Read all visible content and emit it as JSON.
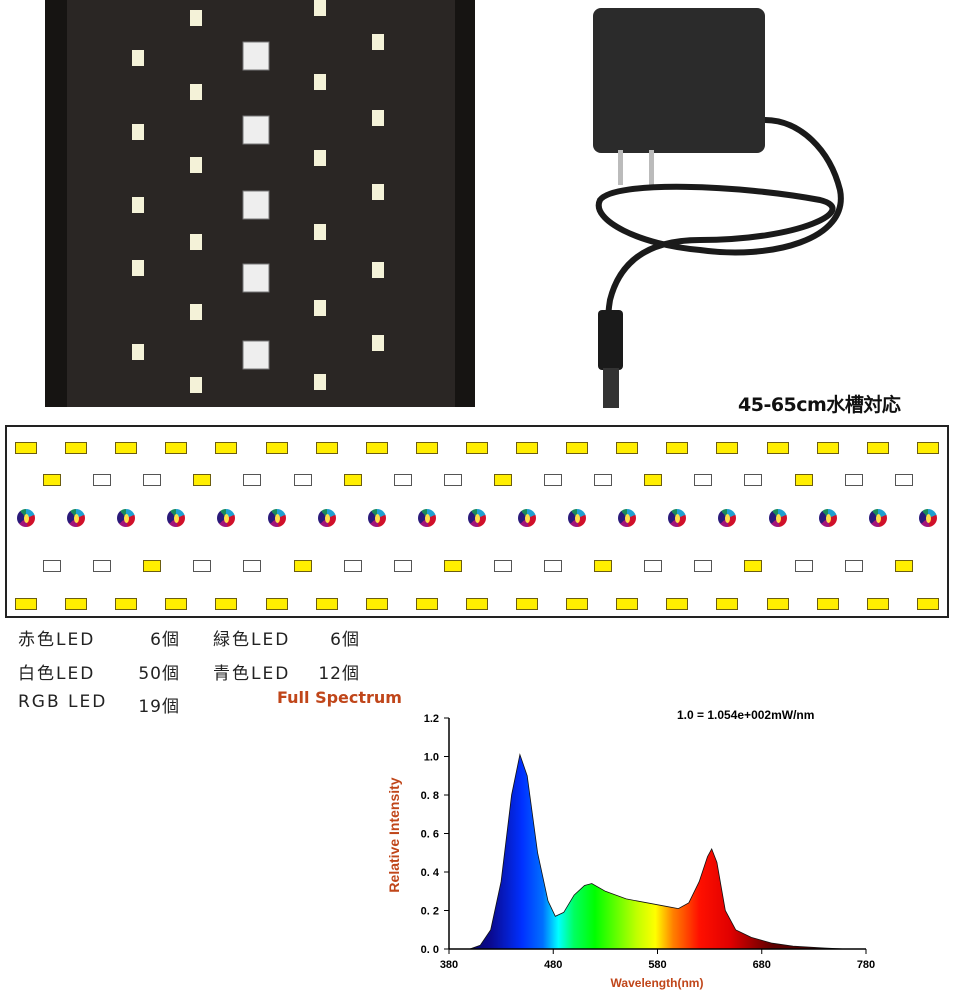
{
  "header": {
    "tank_size_label": "45-65cm水槽対応"
  },
  "colors": {
    "led_warm": "#ffee00",
    "led_white": "#ffffff",
    "accent_text": "#c0461a"
  },
  "led_layout": {
    "row1": [
      "Y",
      "Y",
      "Y",
      "Y",
      "Y",
      "Y",
      "Y",
      "Y",
      "Y",
      "Y",
      "Y",
      "Y",
      "Y",
      "Y",
      "Y",
      "Y",
      "Y",
      "Y",
      "Y"
    ],
    "row2": [
      "Y",
      "W",
      "W",
      "Y",
      "W",
      "W",
      "Y",
      "W",
      "W",
      "Y",
      "W",
      "W",
      "Y",
      "W",
      "W",
      "Y",
      "W",
      "W"
    ],
    "row3": [
      "RGB",
      "RGB",
      "RGB",
      "RGB",
      "RGB",
      "RGB",
      "RGB",
      "RGB",
      "RGB",
      "RGB",
      "RGB",
      "RGB",
      "RGB",
      "RGB",
      "RGB",
      "RGB",
      "RGB",
      "RGB",
      "RGB"
    ],
    "row4": [
      "W",
      "W",
      "Y",
      "W",
      "W",
      "Y",
      "W",
      "W",
      "Y",
      "W",
      "W",
      "Y",
      "W",
      "W",
      "Y",
      "W",
      "W",
      "Y"
    ],
    "row5": [
      "Y",
      "Y",
      "Y",
      "Y",
      "Y",
      "Y",
      "Y",
      "Y",
      "Y",
      "Y",
      "Y",
      "Y",
      "Y",
      "Y",
      "Y",
      "Y",
      "Y",
      "Y",
      "Y"
    ]
  },
  "led_counts": [
    {
      "label": "赤色LED",
      "count": "6個"
    },
    {
      "label": "緑色LED",
      "count": "6個"
    },
    {
      "label": "白色LED",
      "count": "50個"
    },
    {
      "label": "青色LED",
      "count": "12個"
    },
    {
      "label": "RGB LED",
      "count": "19個"
    }
  ],
  "chart_data": {
    "type": "area",
    "title": "Full Spectrum",
    "annotation": "1.0 = 1.054e+002mW/nm",
    "xlabel": "Wavelength(nm)",
    "ylabel": "Relative Intensity",
    "xlim": [
      380,
      780
    ],
    "ylim": [
      0,
      1.2
    ],
    "xticks": [
      "380",
      "480",
      "580",
      "680",
      "780"
    ],
    "yticks": [
      "0. 0",
      "0. 2",
      "0. 4",
      "0. 6",
      "0. 8",
      "1.0",
      "1.2"
    ],
    "grid": false,
    "fill": "visible-spectrum gradient by wavelength",
    "x": [
      400,
      410,
      420,
      430,
      440,
      448,
      455,
      465,
      475,
      482,
      490,
      500,
      510,
      517,
      530,
      550,
      570,
      590,
      600,
      610,
      620,
      628,
      632,
      637,
      645,
      655,
      670,
      690,
      710,
      740,
      760
    ],
    "y": [
      0.0,
      0.02,
      0.1,
      0.35,
      0.8,
      1.01,
      0.9,
      0.5,
      0.25,
      0.17,
      0.19,
      0.28,
      0.33,
      0.34,
      0.3,
      0.26,
      0.24,
      0.22,
      0.21,
      0.24,
      0.35,
      0.48,
      0.52,
      0.45,
      0.2,
      0.1,
      0.06,
      0.03,
      0.015,
      0.005,
      0.0
    ]
  }
}
